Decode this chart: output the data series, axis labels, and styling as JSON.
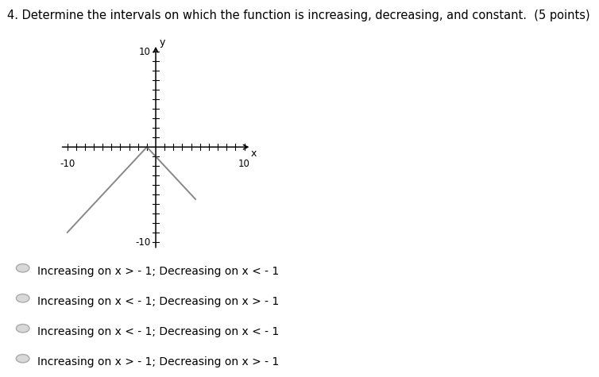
{
  "title": "4. Determine the intervals on which the function is increasing, decreasing, and constant.  (5 points)",
  "title_fontsize": 10.5,
  "xlim": [
    -10,
    10
  ],
  "ylim": [
    -10,
    10
  ],
  "axis_label_x": "x",
  "axis_label_y": "y",
  "axis_label_10_x": "10",
  "axis_label_neg10_x": "-10",
  "axis_label_10_y": "10",
  "axis_label_neg10_y": "-10",
  "vertex_x": -1,
  "vertex_y": 0,
  "left_end_x": -10,
  "left_end_y": -9,
  "right_end_x": 4.5,
  "right_end_y": -5.5,
  "line_color": "#888888",
  "line_width": 1.4,
  "choices": [
    "Increasing on x > - 1; Decreasing on x < - 1",
    "Increasing on x < - 1; Decreasing on x > - 1",
    "Increasing on x < - 1; Decreasing on x < - 1",
    "Increasing on x > - 1; Decreasing on x > - 1"
  ],
  "choice_fontsize": 10,
  "background_color": "#ffffff"
}
